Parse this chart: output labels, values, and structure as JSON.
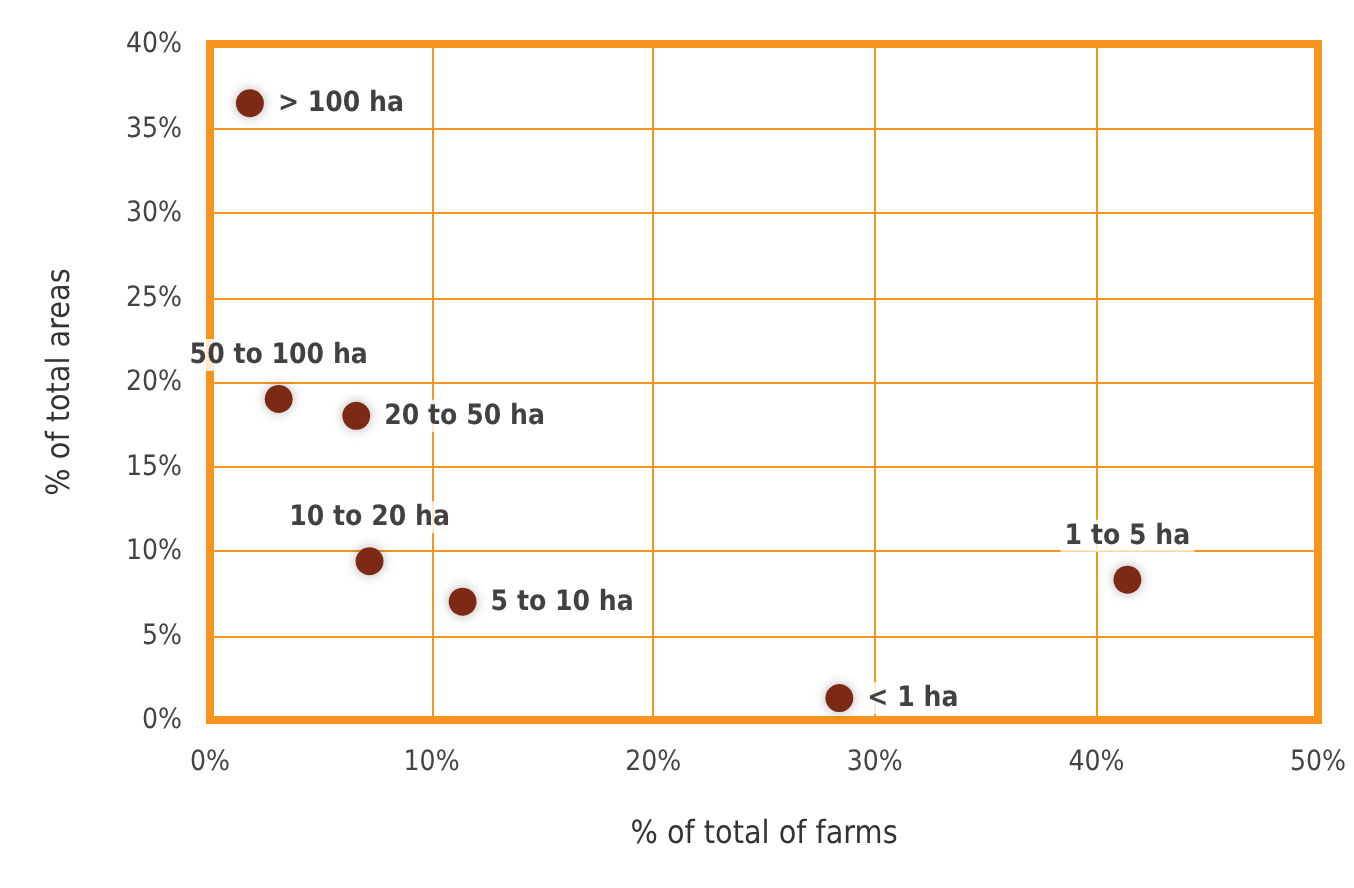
{
  "chart_data": {
    "type": "scatter",
    "xlabel": "% of total of farms",
    "ylabel": "% of total areas",
    "x": [
      1.8,
      3.1,
      6.6,
      7.2,
      11.4,
      28.4,
      41.4
    ],
    "series": [
      {
        "color": "#7b2912",
        "values": [
          36.5,
          19.0,
          18.0,
          9.4,
          7.0,
          1.3,
          8.3
        ]
      }
    ],
    "annotations": [
      {
        "text": "> 100 ha",
        "x": 1.8,
        "y": 36.5
      },
      {
        "text": "50 to 100 ha",
        "x": 3.1,
        "y": 19.0
      },
      {
        "text": "20 to 50 ha",
        "x": 6.6,
        "y": 18.0
      },
      {
        "text": "10 to 20 ha",
        "x": 7.2,
        "y": 9.4
      },
      {
        "text": "5 to 10 ha",
        "x": 11.4,
        "y": 7.0
      },
      {
        "text": "< 1 ha",
        "x": 28.4,
        "y": 1.3
      },
      {
        "text": "1 to 5 ha",
        "x": 41.4,
        "y": 8.3
      }
    ],
    "xlim": [
      0,
      50
    ],
    "xticks": [
      {
        "value": 0,
        "label": "0%"
      },
      {
        "value": 10,
        "label": "10%"
      },
      {
        "value": 20,
        "label": "20%"
      },
      {
        "value": 30,
        "label": "30%"
      },
      {
        "value": 40,
        "label": "40%"
      },
      {
        "value": 50,
        "label": "50%"
      }
    ],
    "ylim": [
      0,
      40
    ],
    "yticks": [
      {
        "value": 0,
        "label": "0%"
      },
      {
        "value": 5,
        "label": "5%"
      },
      {
        "value": 10,
        "label": "10%"
      },
      {
        "value": 15,
        "label": "15%"
      },
      {
        "value": 20,
        "label": "20%"
      },
      {
        "value": 25,
        "label": "25%"
      },
      {
        "value": 30,
        "label": "30%"
      },
      {
        "value": 35,
        "label": "35%"
      },
      {
        "value": 40,
        "label": "40%"
      }
    ],
    "grid": true,
    "marker": "circle"
  }
}
